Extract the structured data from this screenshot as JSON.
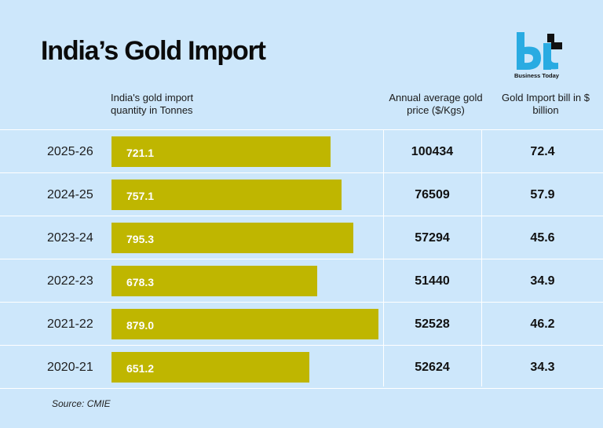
{
  "title": "India’s Gold Import",
  "logo": {
    "text": "Business Today",
    "name": "business-today-logo"
  },
  "columns": {
    "quantity": "India's gold import quantity in Tonnes",
    "price": "Annual average gold price ($/Kgs)",
    "bill": "Gold Import bill in $ billion"
  },
  "source": "Source: CMIE",
  "colors": {
    "background": "#cde7fb",
    "bar": "#bfb600",
    "logo_blue": "#29abe2"
  },
  "chart_data": {
    "type": "bar",
    "orientation": "horizontal",
    "categories": [
      "2025-26",
      "2024-25",
      "2023-24",
      "2022-23",
      "2021-22",
      "2020-21"
    ],
    "series": [
      {
        "name": "India's gold import quantity in Tonnes",
        "values": [
          721.1,
          757.1,
          795.3,
          678.3,
          879.0,
          651.2
        ]
      }
    ],
    "value_labels": [
      "721.1",
      "757.1",
      "795.3",
      "678.3",
      "879.0",
      "651.2"
    ],
    "table": {
      "price": [
        "100434",
        "76509",
        "57294",
        "51440",
        "52528",
        "52624"
      ],
      "bill": [
        "72.4",
        "57.9",
        "45.6",
        "34.9",
        "46.2",
        "34.3"
      ]
    },
    "xlim": [
      0,
      879.0
    ],
    "grid": false
  }
}
